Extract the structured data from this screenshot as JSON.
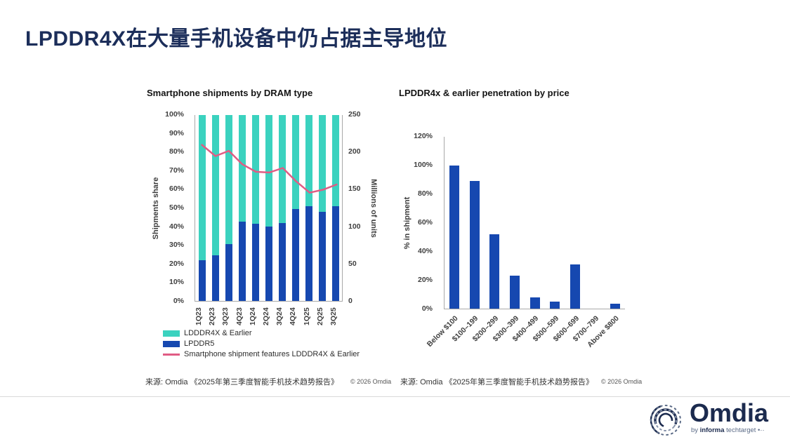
{
  "slide": {
    "title": "LPDDR4X在大量手机设备中仍占据主导地位",
    "source_label": "来源: Omdia 《2025年第三季度智能手机技术趋势报告》",
    "copyright": "© 2026 Omdia"
  },
  "colors": {
    "navy": "#1c2e5a",
    "teal": "#3bd2bf",
    "blue": "#1648b0",
    "pink": "#e05c84"
  },
  "logo": {
    "brand": "Omdia",
    "tagline_by": "by ",
    "tagline_informa": "informa",
    "tagline_rest": " techtarget •··"
  },
  "chart_data": [
    {
      "id": "shipments-by-dram",
      "type": "bar",
      "variant": "stacked-bar-with-line",
      "title": "Smartphone shipments by DRAM type",
      "categories": [
        "1Q23",
        "2Q23",
        "3Q23",
        "4Q23",
        "1Q24",
        "2Q24",
        "3Q24",
        "4Q24",
        "1Q25",
        "2Q25",
        "3Q25"
      ],
      "series": [
        {
          "name": "LPDDR5",
          "render": "bar",
          "axis": "left",
          "color_key": "blue",
          "values": [
            22,
            24.5,
            30.5,
            42.5,
            41.5,
            40,
            42,
            49.5,
            51,
            48,
            51
          ]
        },
        {
          "name": "LDDDR4X & Earlier",
          "render": "bar",
          "axis": "left",
          "color_key": "teal",
          "values": [
            78,
            75.5,
            69.5,
            57.5,
            58.5,
            60,
            58,
            50.5,
            49,
            52,
            49
          ]
        },
        {
          "name": "Smartphone shipment features LDDDR4X & Earlier",
          "render": "line",
          "axis": "right",
          "color_key": "pink",
          "values": [
            210,
            195,
            202,
            184,
            174,
            173,
            179,
            161,
            146,
            150,
            157
          ]
        }
      ],
      "ylabel_left": "Shipments share",
      "ylabel_right": "Millions of units",
      "yticks_left": [
        "100%",
        "90%",
        "80%",
        "70%",
        "60%",
        "50%",
        "40%",
        "30%",
        "20%",
        "10%",
        "0%"
      ],
      "yticks_right": [
        "250",
        "200",
        "150",
        "100",
        "50",
        "0"
      ],
      "ylim_left": [
        0,
        100
      ],
      "ylim_right": [
        0,
        250
      ],
      "grid": false,
      "legend_position": "bottom-left",
      "legend": [
        {
          "swatch": "rect",
          "color_key": "teal",
          "label": "LDDDR4X & Earlier"
        },
        {
          "swatch": "rect",
          "color_key": "blue",
          "label": "LPDDR5"
        },
        {
          "swatch": "line",
          "color_key": "pink",
          "label": "Smartphone shipment features LDDDR4X & Earlier"
        }
      ]
    },
    {
      "id": "penetration-by-price",
      "type": "bar",
      "title": "LPDDR4x & earlier penetration by price",
      "categories": [
        "Below $100",
        "$100–199",
        "$200–299",
        "$300–399",
        "$400–499",
        "$500–599",
        "$600–699",
        "$700–799",
        "Above $800"
      ],
      "values": [
        100,
        89,
        52,
        23,
        8,
        5,
        31,
        0,
        3.5
      ],
      "xlabel": "",
      "ylabel": "% in shipment",
      "yticks": [
        "120%",
        "100%",
        "80%",
        "60%",
        "40%",
        "20%",
        "0%"
      ],
      "ylim": [
        0,
        120
      ],
      "grid": false
    }
  ]
}
